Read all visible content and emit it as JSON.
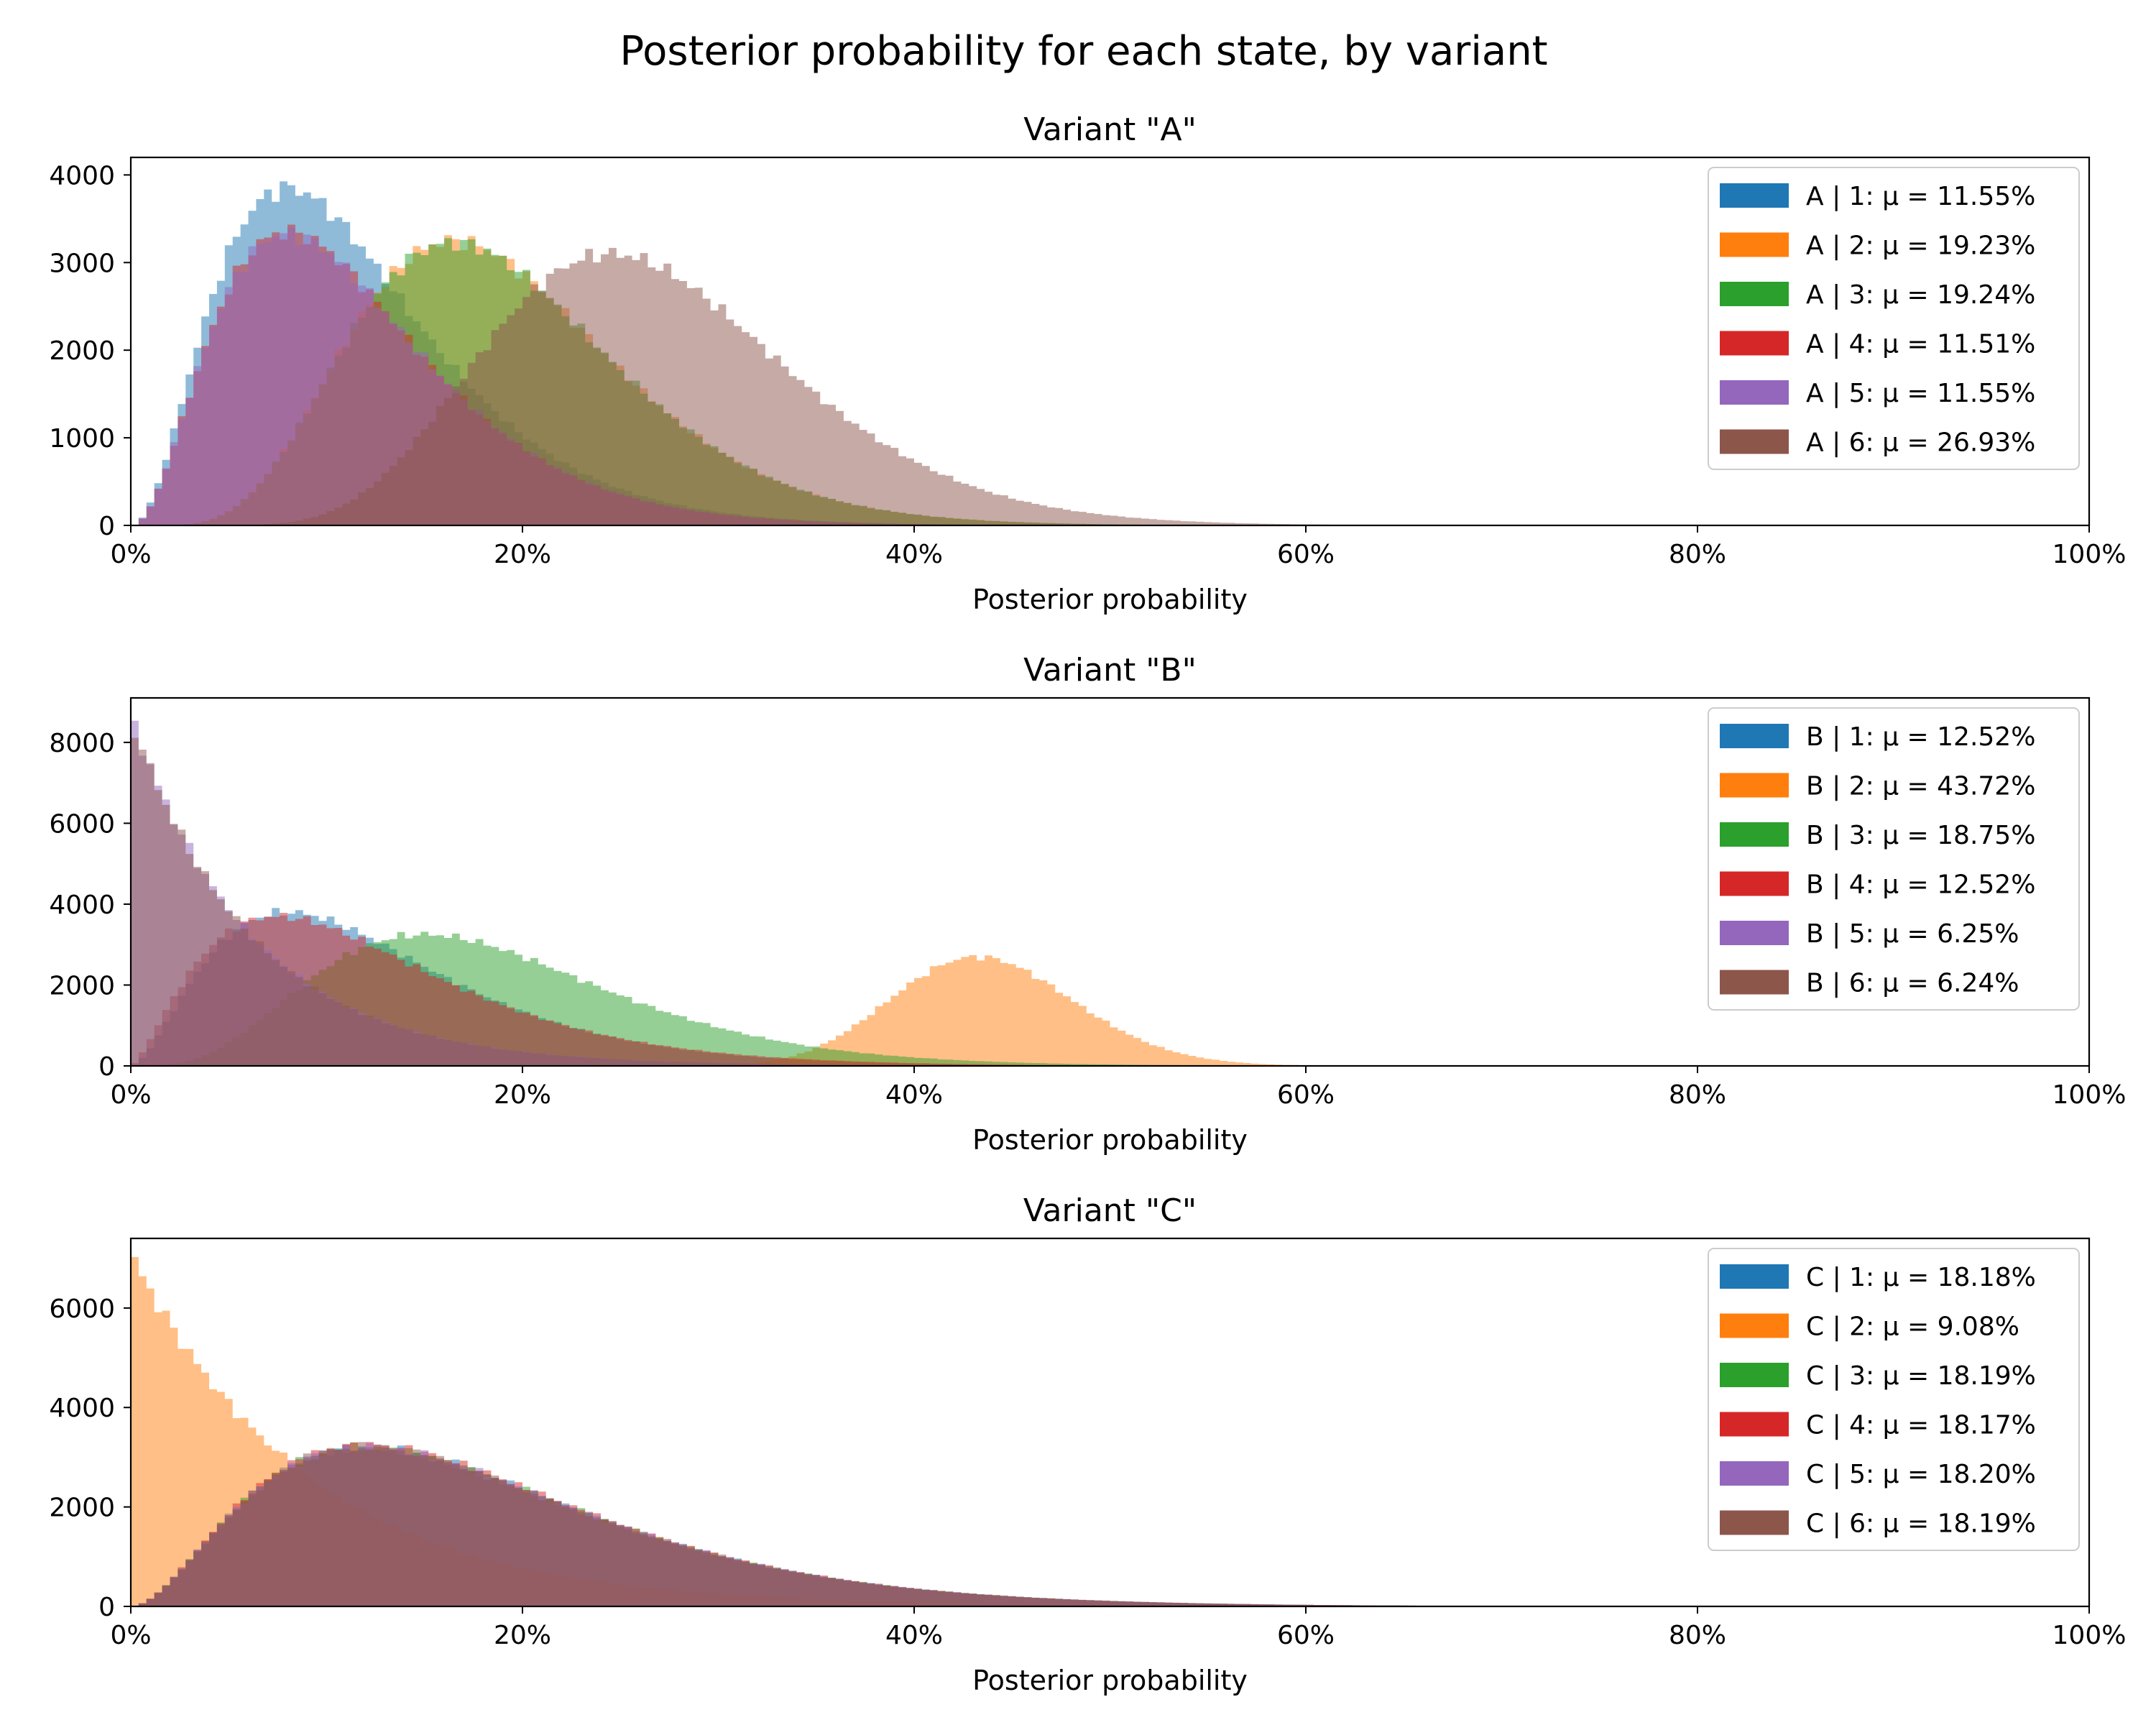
{
  "figure_title": "Posterior probability for each state, by variant",
  "chart_data": [
    {
      "type": "histogram",
      "title": "Variant \"A\"",
      "xlabel": "Posterior probability",
      "ylabel": "",
      "xlim": [
        0,
        100
      ],
      "ylim": [
        0,
        4200
      ],
      "x_ticks": [
        0,
        20,
        40,
        60,
        80,
        100
      ],
      "x_tick_labels": [
        "0%",
        "20%",
        "40%",
        "60%",
        "80%",
        "100%"
      ],
      "y_ticks": [
        0,
        1000,
        2000,
        3000,
        4000
      ],
      "y_tick_labels": [
        "0",
        "1000",
        "2000",
        "3000",
        "4000"
      ],
      "legend": "upper right",
      "series": [
        {
          "name": "A | 1",
          "label": "A | 1: μ = 11.55%",
          "color": "#1f77b4",
          "dist": "gamma",
          "mean": 11.55,
          "peak_x": 8,
          "peak_y": 3850
        },
        {
          "name": "A | 2",
          "label": "A | 2: μ = 19.23%",
          "color": "#ff7f0e",
          "dist": "gamma",
          "mean": 19.23,
          "peak_x": 16.5,
          "peak_y": 3250
        },
        {
          "name": "A | 3",
          "label": "A | 3: μ = 19.24%",
          "color": "#2ca02c",
          "dist": "gamma",
          "mean": 19.24,
          "peak_x": 16.5,
          "peak_y": 3230
        },
        {
          "name": "A | 4",
          "label": "A | 4: μ = 11.51%",
          "color": "#d62728",
          "dist": "gamma",
          "mean": 11.51,
          "peak_x": 8,
          "peak_y": 3350
        },
        {
          "name": "A | 5",
          "label": "A | 5: μ = 11.55%",
          "color": "#9467bd",
          "dist": "gamma",
          "mean": 11.55,
          "peak_x": 8,
          "peak_y": 3330
        },
        {
          "name": "A | 6",
          "label": "A | 6: μ = 26.93%",
          "color": "#8c564b",
          "dist": "gamma",
          "mean": 26.93,
          "peak_x": 24.5,
          "peak_y": 3100
        }
      ]
    },
    {
      "type": "histogram",
      "title": "Variant \"B\"",
      "xlabel": "Posterior probability",
      "ylabel": "",
      "xlim": [
        0,
        100
      ],
      "ylim": [
        0,
        9100
      ],
      "x_ticks": [
        0,
        20,
        40,
        60,
        80,
        100
      ],
      "x_tick_labels": [
        "0%",
        "20%",
        "40%",
        "60%",
        "80%",
        "100%"
      ],
      "y_ticks": [
        0,
        2000,
        4000,
        6000,
        8000
      ],
      "y_tick_labels": [
        "0",
        "2000",
        "4000",
        "6000",
        "8000"
      ],
      "legend": "upper right",
      "series": [
        {
          "name": "B | 1",
          "label": "B | 1: μ = 12.52%",
          "color": "#1f77b4",
          "dist": "gamma",
          "mean": 12.52,
          "peak_x": 8,
          "peak_y": 3800
        },
        {
          "name": "B | 2",
          "label": "B | 2: μ = 43.72%",
          "color": "#ff7f0e",
          "dist": "gamma",
          "mean": 43.72,
          "peak_x": 44,
          "peak_y": 2700
        },
        {
          "name": "B | 3",
          "label": "B | 3: μ = 18.75%",
          "color": "#2ca02c",
          "dist": "gamma",
          "mean": 18.75,
          "peak_x": 15,
          "peak_y": 3250
        },
        {
          "name": "B | 4",
          "label": "B | 4: μ = 12.52%",
          "color": "#d62728",
          "dist": "gamma",
          "mean": 12.52,
          "peak_x": 7.5,
          "peak_y": 3700
        },
        {
          "name": "B | 5",
          "label": "B | 5: μ = 6.25%",
          "color": "#9467bd",
          "dist": "exp",
          "mean": 6.25,
          "peak_x": 0,
          "peak_y": 8600
        },
        {
          "name": "B | 6",
          "label": "B | 6: μ = 6.24%",
          "color": "#8c564b",
          "dist": "exp",
          "mean": 6.24,
          "peak_x": 0,
          "peak_y": 8550
        }
      ]
    },
    {
      "type": "histogram",
      "title": "Variant \"C\"",
      "xlabel": "Posterior probability",
      "ylabel": "",
      "xlim": [
        0,
        100
      ],
      "ylim": [
        0,
        7400
      ],
      "x_ticks": [
        0,
        20,
        40,
        60,
        80,
        100
      ],
      "x_tick_labels": [
        "0%",
        "20%",
        "40%",
        "60%",
        "80%",
        "100%"
      ],
      "y_ticks": [
        0,
        2000,
        4000,
        6000
      ],
      "y_tick_labels": [
        "0",
        "2000",
        "4000",
        "6000"
      ],
      "legend": "upper right",
      "series": [
        {
          "name": "C | 1",
          "label": "C | 1: μ = 18.18%",
          "color": "#1f77b4",
          "dist": "gamma",
          "mean": 18.18,
          "peak_x": 12,
          "peak_y": 3200
        },
        {
          "name": "C | 2",
          "label": "C | 2: μ = 9.08%",
          "color": "#ff7f0e",
          "dist": "exp",
          "mean": 9.08,
          "peak_x": 0,
          "peak_y": 7050
        },
        {
          "name": "C | 3",
          "label": "C | 3: μ = 18.19%",
          "color": "#2ca02c",
          "dist": "gamma",
          "mean": 18.19,
          "peak_x": 12,
          "peak_y": 3200
        },
        {
          "name": "C | 4",
          "label": "C | 4: μ = 18.17%",
          "color": "#d62728",
          "dist": "gamma",
          "mean": 18.17,
          "peak_x": 12,
          "peak_y": 3250
        },
        {
          "name": "C | 5",
          "label": "C | 5: μ = 18.20%",
          "color": "#9467bd",
          "dist": "gamma",
          "mean": 18.2,
          "peak_x": 12,
          "peak_y": 3200
        },
        {
          "name": "C | 6",
          "label": "C | 6: μ = 18.19%",
          "color": "#8c564b",
          "dist": "gamma",
          "mean": 18.19,
          "peak_x": 12,
          "peak_y": 3200
        }
      ]
    }
  ]
}
